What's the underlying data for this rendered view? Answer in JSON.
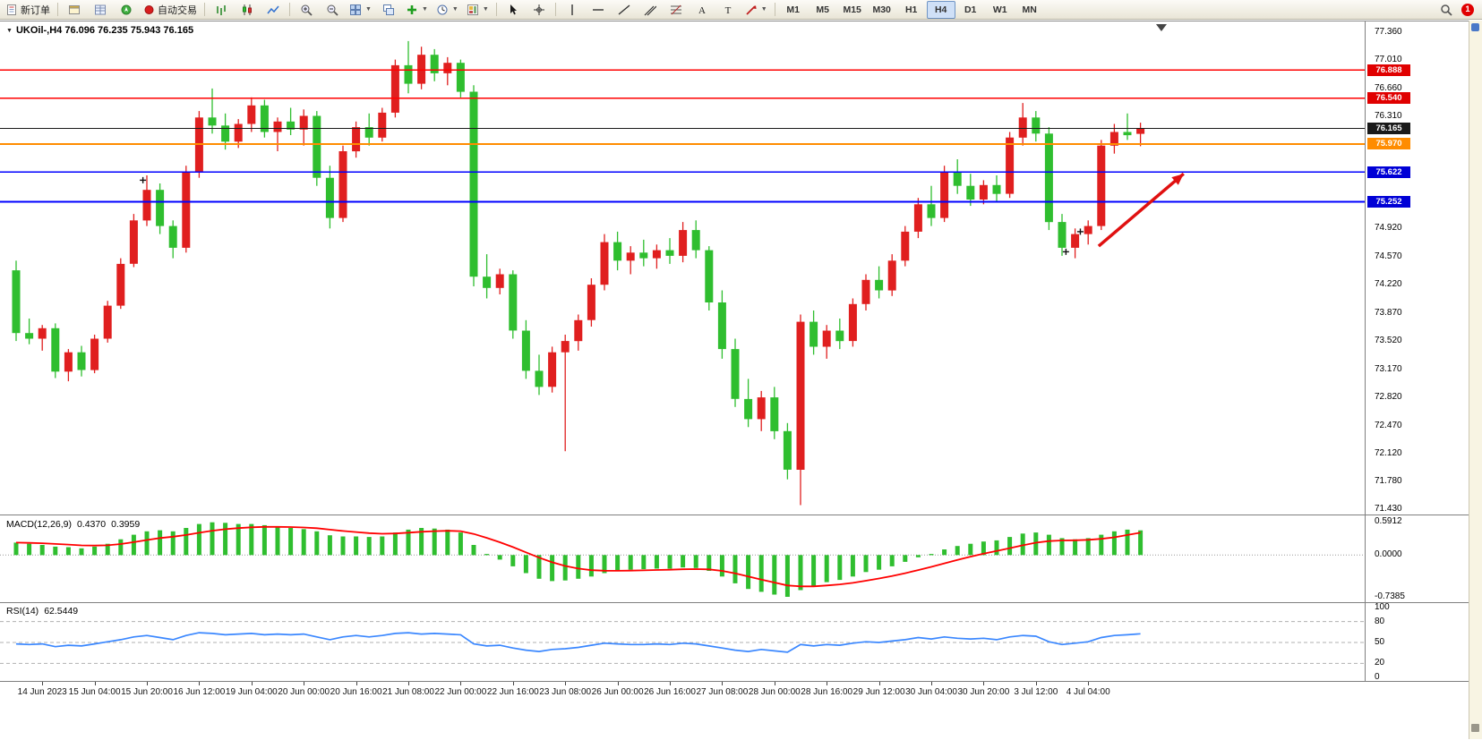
{
  "toolbar": {
    "new_order_label": "新订单",
    "autotrade_label": "自动交易",
    "timeframes": [
      "M1",
      "M5",
      "M15",
      "M30",
      "H1",
      "H4",
      "D1",
      "W1",
      "MN"
    ],
    "active_timeframe": "H4",
    "notification_count": "1",
    "icons": [
      "new-order-icon",
      "terminal-icon",
      "market-watch-icon",
      "navigator-icon",
      "autotrade-icon",
      "bar-chart-icon",
      "candlestick-icon",
      "line-chart-icon",
      "zoom-in-icon",
      "zoom-out-icon",
      "tile-windows-icon",
      "cascade-windows-icon",
      "arrange-windows-icon",
      "indicators-icon",
      "periods-icon",
      "template-icon",
      "cursor-icon",
      "crosshair-icon",
      "vertical-line-icon",
      "horizontal-line-icon",
      "trendline-icon",
      "channel-icon",
      "fibonacci-icon",
      "text-icon",
      "label-icon",
      "arrows-icon",
      "search-icon"
    ]
  },
  "chart": {
    "title": "UKOil-,H4 76.096 76.235 75.943 76.165",
    "symbol": "UKOil-",
    "period": "H4",
    "open": "76.096",
    "high": "76.235",
    "low": "75.943",
    "close": "76.165",
    "macd_label": "MACD(12,26,9)",
    "macd_value_main": "0.4370",
    "macd_value_signal": "0.3959",
    "rsi_label": "RSI(14)",
    "rsi_value": "62.5449"
  },
  "chart_data": [
    {
      "type": "candlestick",
      "title": "UKOil-,H4",
      "ylim": [
        71.43,
        77.36
      ],
      "up_color": "#e01f1f",
      "down_color": "#2fbe2f",
      "y_ticks": [
        77.36,
        77.01,
        76.66,
        76.31,
        74.92,
        74.57,
        74.22,
        73.87,
        73.52,
        73.17,
        72.82,
        72.47,
        72.12,
        71.78,
        71.43
      ],
      "x_labels": [
        "14 Jun 2023",
        "15 Jun 04:00",
        "15 Jun 20:00",
        "16 Jun 12:00",
        "19 Jun 04:00",
        "20 Jun 00:00",
        "20 Jun 16:00",
        "21 Jun 08:00",
        "22 Jun 00:00",
        "22 Jun 16:00",
        "23 Jun 08:00",
        "26 Jun 00:00",
        "26 Jun 16:00",
        "27 Jun 08:00",
        "28 Jun 00:00",
        "28 Jun 16:00",
        "29 Jun 12:00",
        "30 Jun 04:00",
        "30 Jun 20:00",
        "3 Jul 12:00",
        "4 Jul 04:00"
      ],
      "x_label_start": 2,
      "x_label_step": 4,
      "hlines": [
        {
          "price": 76.888,
          "label": "76.888",
          "color": "#ff0000",
          "badge_color": "#e00000",
          "width": 1.4
        },
        {
          "price": 76.54,
          "label": "76.540",
          "color": "#ff0000",
          "badge_color": "#e00000",
          "width": 1.4
        },
        {
          "price": 75.97,
          "label": "75.970",
          "color": "#ff8c00",
          "badge_color": "#ff8c00",
          "width": 1.8
        },
        {
          "price": 75.622,
          "label": "75.622",
          "color": "#0000ff",
          "badge_color": "#0000d6",
          "width": 1.8
        },
        {
          "price": 75.252,
          "label": "75.252",
          "color": "#0000ff",
          "badge_color": "#0000d6",
          "width": 1.8
        }
      ],
      "current_price": {
        "price": 76.165,
        "label": "76.165",
        "color": "#1a1a1a"
      },
      "arrow": {
        "from_bar": 82.8,
        "from_price": 74.7,
        "to_bar": 89.3,
        "to_price": 75.6,
        "color": "#e01010"
      },
      "markers": [
        {
          "bar": 9.7,
          "price": 75.52
        },
        {
          "bar": 80.3,
          "price": 74.63
        },
        {
          "bar": 81.4,
          "price": 74.88
        }
      ],
      "shift_marker_bar": 87.6,
      "candles": [
        [
          74.4,
          74.52,
          73.52,
          73.62
        ],
        [
          73.62,
          73.8,
          73.48,
          73.55
        ],
        [
          73.55,
          73.72,
          73.4,
          73.68
        ],
        [
          73.68,
          73.74,
          73.06,
          73.14
        ],
        [
          73.14,
          73.42,
          73.02,
          73.38
        ],
        [
          73.38,
          73.46,
          73.08,
          73.16
        ],
        [
          73.16,
          73.6,
          73.12,
          73.55
        ],
        [
          73.55,
          74.02,
          73.5,
          73.96
        ],
        [
          73.96,
          74.55,
          73.92,
          74.48
        ],
        [
          74.48,
          75.1,
          74.44,
          75.02
        ],
        [
          75.02,
          75.58,
          74.95,
          75.4
        ],
        [
          75.4,
          75.48,
          74.85,
          74.95
        ],
        [
          74.95,
          75.02,
          74.55,
          74.68
        ],
        [
          74.68,
          75.7,
          74.62,
          75.62
        ],
        [
          75.62,
          76.38,
          75.55,
          76.3
        ],
        [
          76.3,
          76.66,
          76.1,
          76.2
        ],
        [
          76.2,
          76.35,
          75.9,
          76.0
        ],
        [
          76.0,
          76.28,
          75.92,
          76.22
        ],
        [
          76.22,
          76.55,
          76.12,
          76.45
        ],
        [
          76.45,
          76.52,
          76.05,
          76.12
        ],
        [
          76.12,
          76.3,
          75.88,
          76.25
        ],
        [
          76.25,
          76.42,
          76.08,
          76.15
        ],
        [
          76.15,
          76.4,
          75.95,
          76.32
        ],
        [
          76.32,
          76.38,
          75.45,
          75.55
        ],
        [
          75.55,
          75.7,
          74.92,
          75.05
        ],
        [
          75.05,
          75.95,
          75.0,
          75.88
        ],
        [
          75.88,
          76.25,
          75.8,
          76.18
        ],
        [
          76.18,
          76.35,
          75.95,
          76.05
        ],
        [
          76.05,
          76.42,
          76.0,
          76.36
        ],
        [
          76.36,
          77.02,
          76.3,
          76.95
        ],
        [
          76.95,
          77.25,
          76.6,
          76.72
        ],
        [
          76.72,
          77.18,
          76.65,
          77.08
        ],
        [
          77.08,
          77.15,
          76.75,
          76.85
        ],
        [
          76.85,
          77.05,
          76.7,
          76.98
        ],
        [
          76.98,
          77.02,
          76.55,
          76.62
        ],
        [
          76.62,
          76.7,
          74.2,
          74.32
        ],
        [
          74.32,
          74.6,
          74.05,
          74.18
        ],
        [
          74.18,
          74.42,
          74.1,
          74.35
        ],
        [
          74.35,
          74.4,
          73.55,
          73.65
        ],
        [
          73.65,
          73.78,
          73.05,
          73.15
        ],
        [
          73.15,
          73.35,
          72.85,
          72.95
        ],
        [
          72.95,
          73.45,
          72.88,
          73.38
        ],
        [
          73.38,
          73.6,
          72.15,
          73.52
        ],
        [
          73.52,
          73.85,
          73.4,
          73.78
        ],
        [
          73.78,
          74.3,
          73.7,
          74.22
        ],
        [
          74.22,
          74.85,
          74.15,
          74.75
        ],
        [
          74.75,
          74.88,
          74.4,
          74.52
        ],
        [
          74.52,
          74.7,
          74.35,
          74.62
        ],
        [
          74.62,
          74.78,
          74.45,
          74.55
        ],
        [
          74.55,
          74.72,
          74.42,
          74.65
        ],
        [
          74.65,
          74.8,
          74.48,
          74.58
        ],
        [
          74.58,
          75.0,
          74.5,
          74.9
        ],
        [
          74.9,
          75.02,
          74.55,
          74.65
        ],
        [
          74.65,
          74.7,
          73.9,
          74.0
        ],
        [
          74.0,
          74.15,
          73.3,
          73.42
        ],
        [
          73.42,
          73.55,
          72.7,
          72.8
        ],
        [
          72.8,
          73.05,
          72.45,
          72.55
        ],
        [
          72.55,
          72.9,
          72.4,
          72.82
        ],
        [
          72.82,
          72.95,
          72.3,
          72.4
        ],
        [
          72.4,
          72.5,
          71.8,
          71.92
        ],
        [
          71.92,
          73.85,
          71.48,
          73.76
        ],
        [
          73.76,
          73.9,
          73.35,
          73.45
        ],
        [
          73.45,
          73.72,
          73.3,
          73.65
        ],
        [
          73.65,
          73.8,
          73.42,
          73.52
        ],
        [
          73.52,
          74.05,
          73.45,
          73.98
        ],
        [
          73.98,
          74.35,
          73.9,
          74.28
        ],
        [
          74.28,
          74.45,
          74.05,
          74.15
        ],
        [
          74.15,
          74.6,
          74.08,
          74.52
        ],
        [
          74.52,
          74.95,
          74.45,
          74.88
        ],
        [
          74.88,
          75.3,
          74.8,
          75.22
        ],
        [
          75.22,
          75.45,
          74.95,
          75.05
        ],
        [
          75.05,
          75.7,
          75.0,
          75.62
        ],
        [
          75.62,
          75.78,
          75.35,
          75.45
        ],
        [
          75.45,
          75.6,
          75.2,
          75.28
        ],
        [
          75.28,
          75.52,
          75.22,
          75.46
        ],
        [
          75.46,
          75.58,
          75.25,
          75.35
        ],
        [
          75.35,
          76.12,
          75.3,
          76.05
        ],
        [
          76.05,
          76.48,
          75.95,
          76.3
        ],
        [
          76.3,
          76.38,
          76.0,
          76.1
        ],
        [
          76.1,
          76.18,
          74.9,
          75.0
        ],
        [
          75.0,
          75.1,
          74.58,
          74.68
        ],
        [
          74.68,
          74.92,
          74.55,
          74.85
        ],
        [
          74.85,
          75.02,
          74.72,
          74.95
        ],
        [
          74.95,
          76.02,
          74.9,
          75.95
        ],
        [
          75.95,
          76.22,
          75.85,
          76.12
        ],
        [
          76.12,
          76.35,
          76.02,
          76.08
        ],
        [
          76.096,
          76.235,
          75.943,
          76.165
        ]
      ]
    },
    {
      "type": "bar",
      "name": "MACD(12,26,9)",
      "ylim": [
        -0.7385,
        0.5912
      ],
      "histogram_color": "#2fbe2f",
      "signal_color": "#ff0000",
      "y_ticks": [
        {
          "v": 0.5912,
          "label": "0.5912"
        },
        {
          "v": 0,
          "label": "0.0000"
        },
        {
          "v": -0.7385,
          "label": "-0.7385"
        }
      ],
      "values": [
        0.22,
        0.2,
        0.18,
        0.15,
        0.14,
        0.12,
        0.15,
        0.2,
        0.28,
        0.36,
        0.42,
        0.44,
        0.42,
        0.48,
        0.55,
        0.58,
        0.57,
        0.55,
        0.55,
        0.53,
        0.5,
        0.48,
        0.46,
        0.42,
        0.35,
        0.33,
        0.33,
        0.32,
        0.33,
        0.4,
        0.45,
        0.48,
        0.47,
        0.45,
        0.4,
        0.18,
        0.02,
        -0.08,
        -0.2,
        -0.32,
        -0.42,
        -0.46,
        -0.45,
        -0.42,
        -0.38,
        -0.32,
        -0.28,
        -0.26,
        -0.25,
        -0.24,
        -0.24,
        -0.22,
        -0.23,
        -0.28,
        -0.38,
        -0.5,
        -0.6,
        -0.65,
        -0.7,
        -0.74,
        -0.62,
        -0.55,
        -0.48,
        -0.44,
        -0.38,
        -0.3,
        -0.26,
        -0.2,
        -0.12,
        -0.04,
        0.02,
        0.1,
        0.16,
        0.2,
        0.24,
        0.26,
        0.32,
        0.38,
        0.4,
        0.36,
        0.3,
        0.28,
        0.3,
        0.36,
        0.42,
        0.45,
        0.437
      ],
      "signal": [
        0.22,
        0.216,
        0.209,
        0.197,
        0.186,
        0.172,
        0.168,
        0.174,
        0.196,
        0.228,
        0.267,
        0.301,
        0.325,
        0.356,
        0.395,
        0.432,
        0.459,
        0.478,
        0.492,
        0.5,
        0.5,
        0.496,
        0.489,
        0.475,
        0.45,
        0.426,
        0.407,
        0.389,
        0.378,
        0.382,
        0.396,
        0.412,
        0.424,
        0.429,
        0.423,
        0.375,
        0.304,
        0.227,
        0.142,
        0.049,
        -0.045,
        -0.128,
        -0.192,
        -0.238,
        -0.266,
        -0.277,
        -0.278,
        -0.274,
        -0.27,
        -0.264,
        -0.259,
        -0.251,
        -0.247,
        -0.253,
        -0.279,
        -0.323,
        -0.378,
        -0.433,
        -0.486,
        -0.537,
        -0.554,
        -0.553,
        -0.538,
        -0.519,
        -0.491,
        -0.453,
        -0.414,
        -0.371,
        -0.321,
        -0.265,
        -0.208,
        -0.146,
        -0.085,
        -0.028,
        0.026,
        0.072,
        0.122,
        0.174,
        0.219,
        0.247,
        0.258,
        0.262,
        0.27,
        0.288,
        0.314,
        0.355,
        0.3959
      ]
    },
    {
      "type": "line",
      "name": "RSI(14)",
      "ylim": [
        0,
        100
      ],
      "line_color": "#3a87ff",
      "levels": [
        80,
        50,
        20
      ],
      "y_ticks": [
        {
          "v": 100,
          "label": "100"
        },
        {
          "v": 80,
          "label": "80"
        },
        {
          "v": 50,
          "label": "50"
        },
        {
          "v": 20,
          "label": "20"
        },
        {
          "v": 0,
          "label": "0"
        }
      ],
      "values": [
        48,
        47,
        48,
        44,
        46,
        45,
        48,
        51,
        54,
        58,
        60,
        57,
        54,
        60,
        64,
        63,
        61,
        62,
        63,
        61,
        62,
        61,
        62,
        58,
        54,
        58,
        60,
        58,
        60,
        63,
        64,
        62,
        63,
        62,
        61,
        48,
        45,
        46,
        42,
        39,
        37,
        40,
        41,
        43,
        46,
        49,
        48,
        47,
        47,
        48,
        47,
        49,
        48,
        45,
        42,
        39,
        37,
        40,
        38,
        36,
        47,
        45,
        47,
        46,
        49,
        51,
        50,
        52,
        54,
        57,
        55,
        58,
        56,
        55,
        56,
        54,
        58,
        60,
        59,
        51,
        47,
        49,
        51,
        57,
        60,
        61,
        62.5
      ]
    }
  ]
}
